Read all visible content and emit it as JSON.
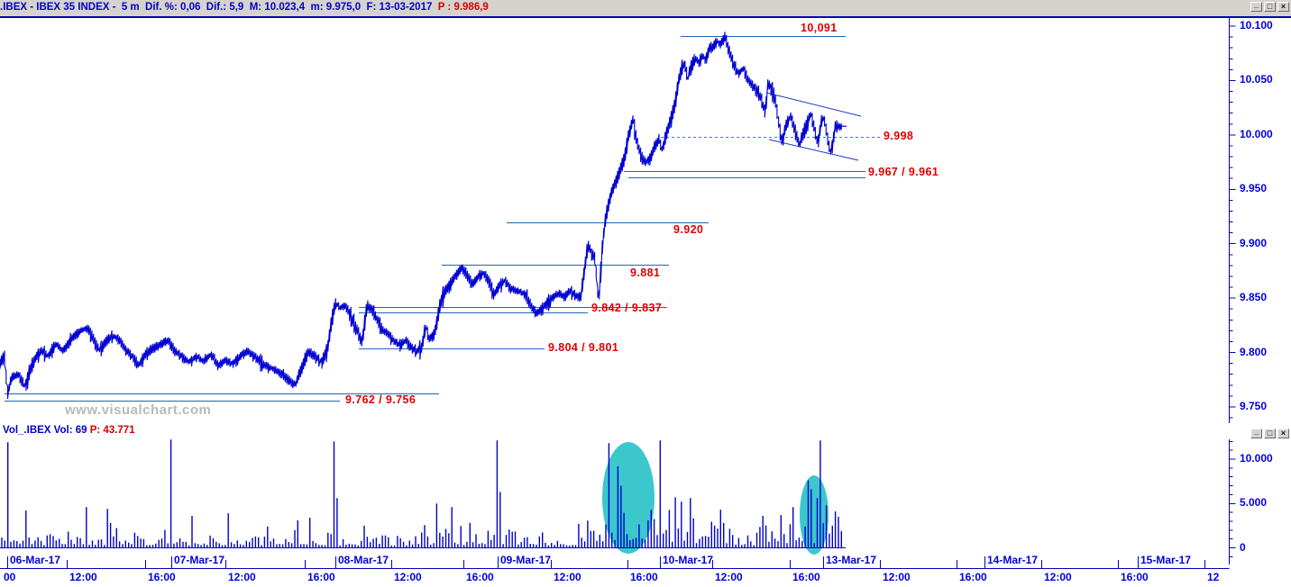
{
  "header": {
    "instrument": ".IBEX - IBEX 35 INDEX -  5 m ",
    "stats": " Dif. %: 0,06  Dif.: 5,9  M: 10.023,4  m: 9.975,0  F: 13-03-2017 ",
    "last_price": " P : 9.986,9"
  },
  "window_controls": {
    "minimize": "_",
    "maximize": "□",
    "close": "×"
  },
  "volume_header": {
    "left": "Vol_.IBEX Vol: 69",
    "right": " P: 43.771"
  },
  "watermark": "www.visualchart.com",
  "colors": {
    "price_line": "#0000D2",
    "level_line": "#1F66B5",
    "dashed_line": "#2E86C8",
    "channel_line": "#2136C8",
    "level_label": "#E00000",
    "axis_text": "#0000E0",
    "axis_line": "#0000C0",
    "volume_bar": "#0000CC",
    "highlight": "#3CC7CC",
    "titlebar_bg": "#D6D3CE",
    "title_blue": "#0000C8",
    "title_red": "#D40000",
    "watermark_gray": "#B9B9B9"
  },
  "chart_data": {
    "type": "line",
    "title": ".IBEX - IBEX 35 INDEX - 5 m",
    "price_pane": {
      "ylim": [
        9735,
        10107
      ],
      "grid": false,
      "legend_position": "none",
      "y_ticks": [
        {
          "v": 10100,
          "label": "10.100"
        },
        {
          "v": 10050,
          "label": "10.050"
        },
        {
          "v": 10000,
          "label": "10.000"
        },
        {
          "v": 9950,
          "label": "9.950"
        },
        {
          "v": 9900,
          "label": "9.900"
        },
        {
          "v": 9850,
          "label": "9.850"
        },
        {
          "v": 9800,
          "label": "9.800"
        },
        {
          "v": 9750,
          "label": "9.750"
        }
      ],
      "minor_tick_step": 10,
      "series_keypoints": [
        [
          0,
          9790
        ],
        [
          5,
          9797
        ],
        [
          8,
          9762
        ],
        [
          13,
          9776
        ],
        [
          20,
          9780
        ],
        [
          28,
          9768
        ],
        [
          36,
          9790
        ],
        [
          46,
          9802
        ],
        [
          54,
          9796
        ],
        [
          62,
          9808
        ],
        [
          70,
          9801
        ],
        [
          80,
          9813
        ],
        [
          90,
          9820
        ],
        [
          97,
          9822
        ],
        [
          104,
          9811
        ],
        [
          110,
          9802
        ],
        [
          117,
          9809
        ],
        [
          124,
          9815
        ],
        [
          132,
          9812
        ],
        [
          140,
          9801
        ],
        [
          148,
          9795
        ],
        [
          154,
          9788
        ],
        [
          162,
          9799
        ],
        [
          170,
          9804
        ],
        [
          178,
          9807
        ],
        [
          186,
          9811
        ],
        [
          194,
          9801
        ],
        [
          202,
          9796
        ],
        [
          210,
          9791
        ],
        [
          218,
          9796
        ],
        [
          226,
          9792
        ],
        [
          234,
          9798
        ],
        [
          242,
          9788
        ],
        [
          250,
          9793
        ],
        [
          258,
          9789
        ],
        [
          266,
          9796
        ],
        [
          274,
          9801
        ],
        [
          282,
          9796
        ],
        [
          290,
          9791
        ],
        [
          298,
          9786
        ],
        [
          306,
          9784
        ],
        [
          314,
          9779
        ],
        [
          322,
          9773
        ],
        [
          328,
          9770
        ],
        [
          335,
          9786
        ],
        [
          342,
          9801
        ],
        [
          350,
          9796
        ],
        [
          357,
          9791
        ],
        [
          363,
          9801
        ],
        [
          368,
          9830
        ],
        [
          372,
          9845
        ],
        [
          377,
          9841
        ],
        [
          383,
          9843
        ],
        [
          390,
          9831
        ],
        [
          396,
          9820
        ],
        [
          402,
          9809
        ],
        [
          407,
          9843
        ],
        [
          412,
          9840
        ],
        [
          418,
          9830
        ],
        [
          425,
          9820
        ],
        [
          432,
          9815
        ],
        [
          438,
          9809
        ],
        [
          444,
          9807
        ],
        [
          450,
          9811
        ],
        [
          456,
          9804
        ],
        [
          462,
          9801
        ],
        [
          468,
          9804
        ],
        [
          472,
          9825
        ],
        [
          476,
          9812
        ],
        [
          482,
          9816
        ],
        [
          488,
          9843
        ],
        [
          494,
          9856
        ],
        [
          500,
          9863
        ],
        [
          506,
          9871
        ],
        [
          512,
          9878
        ],
        [
          518,
          9871
        ],
        [
          524,
          9863
        ],
        [
          530,
          9869
        ],
        [
          536,
          9873
        ],
        [
          542,
          9866
        ],
        [
          548,
          9853
        ],
        [
          554,
          9861
        ],
        [
          560,
          9866
        ],
        [
          566,
          9859
        ],
        [
          572,
          9857
        ],
        [
          578,
          9855
        ],
        [
          584,
          9851
        ],
        [
          590,
          9841
        ],
        [
          596,
          9836
        ],
        [
          602,
          9841
        ],
        [
          608,
          9846
        ],
        [
          614,
          9851
        ],
        [
          620,
          9854
        ],
        [
          626,
          9851
        ],
        [
          632,
          9856
        ],
        [
          638,
          9853
        ],
        [
          644,
          9849
        ],
        [
          649,
          9880
        ],
        [
          652,
          9900
        ],
        [
          656,
          9891
        ],
        [
          660,
          9886
        ],
        [
          664,
          9843
        ],
        [
          668,
          9896
        ],
        [
          672,
          9925
        ],
        [
          678,
          9946
        ],
        [
          683,
          9956
        ],
        [
          688,
          9968
        ],
        [
          692,
          9976
        ],
        [
          697,
          9998
        ],
        [
          702,
          10014
        ],
        [
          707,
          9991
        ],
        [
          712,
          9978
        ],
        [
          717,
          9975
        ],
        [
          722,
          9979
        ],
        [
          727,
          9990
        ],
        [
          731,
          9996
        ],
        [
          735,
          9985
        ],
        [
          739,
          10001
        ],
        [
          744,
          10012
        ],
        [
          749,
          10030
        ],
        [
          754,
          10055
        ],
        [
          759,
          10066
        ],
        [
          763,
          10051
        ],
        [
          767,
          10063
        ],
        [
          771,
          10071
        ],
        [
          775,
          10066
        ],
        [
          779,
          10073
        ],
        [
          783,
          10068
        ],
        [
          787,
          10079
        ],
        [
          791,
          10081
        ],
        [
          795,
          10086
        ],
        [
          799,
          10083
        ],
        [
          804,
          10090
        ],
        [
          809,
          10076
        ],
        [
          814,
          10063
        ],
        [
          819,
          10056
        ],
        [
          824,
          10061
        ],
        [
          829,
          10051
        ],
        [
          834,
          10046
        ],
        [
          839,
          10041
        ],
        [
          844,
          10033
        ],
        [
          849,
          10021
        ],
        [
          852,
          10048
        ],
        [
          855,
          10041
        ],
        [
          859,
          10036
        ],
        [
          862,
          10021
        ],
        [
          865,
          10001
        ],
        [
          868,
          9993
        ],
        [
          871,
          10006
        ],
        [
          874,
          10013
        ],
        [
          877,
          10016
        ],
        [
          881,
          10006
        ],
        [
          884,
          9998
        ],
        [
          887,
          9991
        ],
        [
          890,
          9998
        ],
        [
          893,
          10006
        ],
        [
          896,
          10011
        ],
        [
          899,
          10019
        ],
        [
          902,
          10011
        ],
        [
          905,
          9998
        ],
        [
          907,
          9991
        ],
        [
          910,
          10006
        ],
        [
          912,
          10016
        ],
        [
          915,
          10011
        ],
        [
          917,
          10001
        ],
        [
          919,
          9991
        ],
        [
          921,
          9983
        ],
        [
          924,
          9991
        ],
        [
          926,
          10007
        ],
        [
          929,
          10009
        ],
        [
          932,
          10006
        ],
        [
          935,
          10008
        ]
      ],
      "levels": [
        {
          "label": "10,091",
          "label_x": 888,
          "label_y": 24,
          "lines": [
            {
              "p": 10091,
              "x1": 755,
              "x2": 938
            }
          ]
        },
        {
          "label": "9.998",
          "label_x": 980,
          "label_y": 144,
          "lines": [
            {
              "p": 9998,
              "x1": 733,
              "x2": 977,
              "dash": true
            }
          ]
        },
        {
          "label": "9.967 / 9.961",
          "label_x": 963,
          "label_y": 184,
          "lines": [
            {
              "p": 9967,
              "x1": 692,
              "x2": 960
            },
            {
              "p": 9961,
              "x1": 697,
              "x2": 960
            }
          ]
        },
        {
          "label": "9.920",
          "label_x": 747,
          "label_y": 248,
          "lines": [
            {
              "p": 9920,
              "x1": 562,
              "x2": 786
            }
          ]
        },
        {
          "label": "9.881",
          "label_x": 699,
          "label_y": 296,
          "lines": [
            {
              "p": 9881,
              "x1": 490,
              "x2": 742
            }
          ]
        },
        {
          "label": "9.842 / 9.837",
          "label_x": 656,
          "label_y": 335,
          "lines": [
            {
              "p": 9842,
              "x1": 398,
              "x2": 740
            },
            {
              "p": 9837,
              "x1": 398,
              "x2": 652
            }
          ]
        },
        {
          "label": "9.804 / 9.801",
          "label_x": 608,
          "label_y": 379,
          "lines": [
            {
              "p": 9804,
              "x1": 398,
              "x2": 604
            }
          ]
        },
        {
          "label": "9.762 / 9.756",
          "label_x": 383,
          "label_y": 437,
          "lines": [
            {
              "p": 9762,
              "x1": 5,
              "x2": 487
            },
            {
              "p": 9756,
              "x1": 5,
              "x2": 377
            }
          ]
        }
      ],
      "channel_lines": [
        {
          "x1": 850,
          "y1": 103,
          "x2": 955,
          "y2": 129
        },
        {
          "x1": 853,
          "y1": 155,
          "x2": 952,
          "y2": 178
        }
      ]
    },
    "volume_pane": {
      "ylim": [
        0,
        12200
      ],
      "y_ticks": [
        {
          "v": 10000,
          "label": "10.000"
        },
        {
          "v": 5000,
          "label": "5.000"
        },
        {
          "v": 0,
          "label": "0"
        }
      ],
      "minor_tick_step": 1000,
      "bar_step": 3.35,
      "x_start": 2,
      "x_end": 936,
      "spikes": [
        {
          "x": 9,
          "v": 11900
        },
        {
          "x": 30,
          "v": 4200
        },
        {
          "x": 95,
          "v": 4600
        },
        {
          "x": 120,
          "v": 4400
        },
        {
          "x": 189,
          "v": 12200
        },
        {
          "x": 213,
          "v": 3600
        },
        {
          "x": 252,
          "v": 3900
        },
        {
          "x": 330,
          "v": 3100
        },
        {
          "x": 344,
          "v": 3400
        },
        {
          "x": 369,
          "v": 12000
        },
        {
          "x": 375,
          "v": 5600
        },
        {
          "x": 483,
          "v": 5000
        },
        {
          "x": 502,
          "v": 4600
        },
        {
          "x": 550,
          "v": 12100
        },
        {
          "x": 554,
          "v": 6300
        },
        {
          "x": 677,
          "v": 11800
        },
        {
          "x": 684,
          "v": 9200
        },
        {
          "x": 690,
          "v": 7000
        },
        {
          "x": 732,
          "v": 12100
        },
        {
          "x": 755,
          "v": 5200
        },
        {
          "x": 765,
          "v": 5600
        },
        {
          "x": 800,
          "v": 4300
        },
        {
          "x": 845,
          "v": 3600
        },
        {
          "x": 865,
          "v": 3700
        },
        {
          "x": 880,
          "v": 4600
        },
        {
          "x": 895,
          "v": 7600
        },
        {
          "x": 900,
          "v": 6600
        },
        {
          "x": 905,
          "v": 5600
        },
        {
          "x": 911,
          "v": 12100
        },
        {
          "x": 915,
          "v": 4800
        },
        {
          "x": 925,
          "v": 4100
        },
        {
          "x": 931,
          "v": 3500
        }
      ],
      "highlight_ellipses": [
        {
          "cx": 697,
          "cy": 553,
          "rx": 29,
          "ry": 62
        },
        {
          "cx": 903,
          "cy": 572,
          "rx": 16,
          "ry": 44
        }
      ]
    },
    "time_axis": {
      "days": [
        {
          "x": 8,
          "label": "06-Mar-17"
        },
        {
          "x": 190,
          "label": "07-Mar-17"
        },
        {
          "x": 372,
          "label": "08-Mar-17"
        },
        {
          "x": 552,
          "label": "09-Mar-17"
        },
        {
          "x": 732,
          "label": "10-Mar-17"
        },
        {
          "x": 913,
          "label": "13-Mar-17"
        },
        {
          "x": 1092,
          "label": "14-Mar-17"
        },
        {
          "x": 1262,
          "label": "15-Mar-17"
        }
      ],
      "times": [
        {
          "x": 1,
          "label": "00",
          "no_tick": true
        },
        {
          "x": 74,
          "label": "12:00"
        },
        {
          "x": 161,
          "label": "16:00"
        },
        {
          "x": 250,
          "label": "12:00"
        },
        {
          "x": 338,
          "label": "16:00"
        },
        {
          "x": 434,
          "label": "12:00"
        },
        {
          "x": 514,
          "label": "16:00"
        },
        {
          "x": 611,
          "label": "12:00"
        },
        {
          "x": 696,
          "label": "16:00"
        },
        {
          "x": 790,
          "label": "12:00"
        },
        {
          "x": 876,
          "label": "16:00"
        },
        {
          "x": 976,
          "label": "12:00"
        },
        {
          "x": 1061,
          "label": "16:00"
        },
        {
          "x": 1155,
          "label": "12:00"
        },
        {
          "x": 1240,
          "label": "16:00"
        },
        {
          "x": 1336,
          "label": "12"
        }
      ]
    }
  }
}
